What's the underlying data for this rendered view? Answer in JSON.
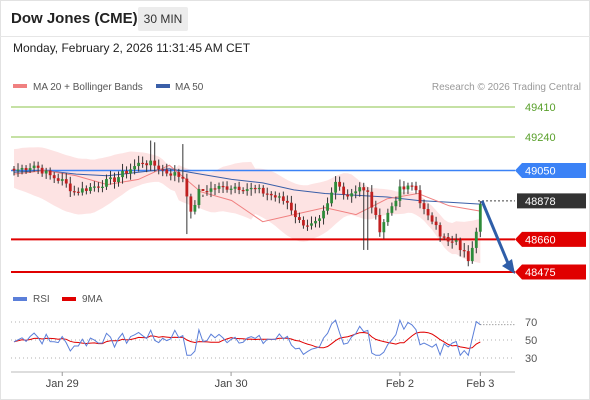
{
  "header": {
    "title": "Dow Jones (CME)",
    "timeframe": "30 MIN",
    "datetime": "Monday, February 2, 2026 11:31:45 AM CET"
  },
  "legend": {
    "ma20_label": "MA 20 + Bollinger Bands",
    "ma50_label": "MA 50",
    "credit": "Research © 2026 Trading Central",
    "rsi_label": "RSI",
    "ma9_label": "9MA"
  },
  "colors": {
    "ma20": "#f08080",
    "bollinger_fill": "#fde3e3",
    "ma50": "#3a5fa8",
    "candle_up": "#2e8b3a",
    "candle_down": "#c02020",
    "resistance": "#8bc34a",
    "pivot": "#3b82f6",
    "support": "#e00000",
    "current": "#333333",
    "rsi": "#5b7fd9",
    "rsi_ma9": "#e00000",
    "arrow": "#2f5ea8"
  },
  "chart_data": [
    {
      "type": "candlestick",
      "title": "Dow Jones (CME)",
      "x_tick_labels": [
        "Jan 29",
        "Jan 30",
        "Feb 2",
        "Feb 3"
      ],
      "levels": [
        {
          "value": 49410,
          "label": "49410",
          "kind": "resistance"
        },
        {
          "value": 49240,
          "label": "49240",
          "kind": "resistance"
        },
        {
          "value": 49050,
          "label": "49050",
          "kind": "pivot"
        },
        {
          "value": 48878,
          "label": "48878",
          "kind": "current"
        },
        {
          "value": 48660,
          "label": "48660",
          "kind": "support"
        },
        {
          "value": 48475,
          "label": "48475",
          "kind": "support"
        }
      ],
      "projection": {
        "from": 48878,
        "to": 48475
      },
      "ylim": [
        48420,
        49590
      ],
      "candle_count": 117,
      "ma20_summary": [
        49030,
        49050,
        49020,
        48970,
        49000,
        49080,
        48930,
        48880,
        48760,
        48800,
        48840,
        48800,
        48890,
        48920,
        48850,
        48820
      ],
      "ma50_summary": [
        49040,
        49050,
        49030,
        49020,
        49040,
        49060,
        49030,
        49000,
        48980,
        48940,
        48920,
        48910,
        48900,
        48880,
        48870,
        48860
      ]
    },
    {
      "type": "line",
      "title": "RSI",
      "series": [
        {
          "name": "RSI"
        },
        {
          "name": "9MA"
        }
      ],
      "ylim": [
        20,
        80
      ],
      "y_tick_labels": [
        "70",
        "50",
        "30"
      ],
      "dotted_levels": [
        70,
        50,
        30
      ],
      "rsi_last": 67
    }
  ]
}
